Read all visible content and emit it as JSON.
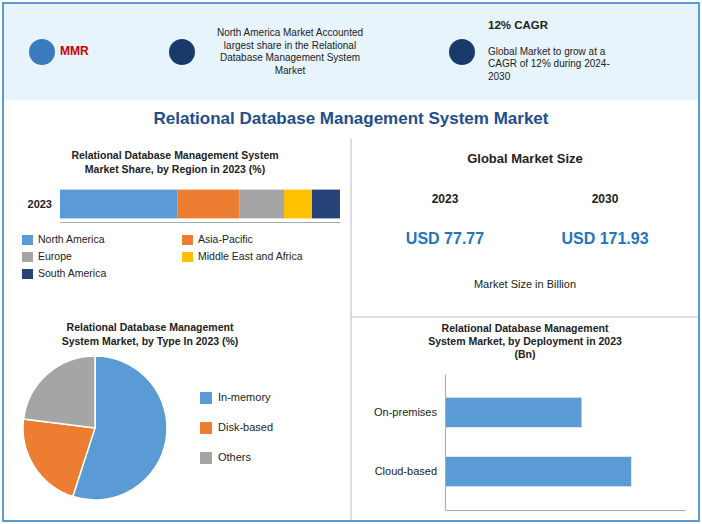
{
  "title": "Relational Database Management System Market",
  "annotations": [
    "MMR",
    "North America Market Accounted\nlargest share in the Relational\nDatabase Management System\nMarket",
    "12% CAGR",
    "Global Market to grow at a\nCAGR of 12% during 2024-\n2030",
    "Global Market Size",
    "2023",
    "2030",
    "USD 77.77",
    "USD 171.93",
    "Market Size in Billion"
  ],
  "chart_data": [
    {
      "type": "bar",
      "orientation": "horizontal",
      "stacked": true,
      "title": "Relational Database Management System\nMarket Share, by Region in 2023 (%)",
      "categories": [
        "2023"
      ],
      "series": [
        {
          "name": "North America",
          "color": "#5b9bd5",
          "values": [
            42
          ]
        },
        {
          "name": "Asia-Pacific",
          "color": "#ed7d31",
          "values": [
            22
          ]
        },
        {
          "name": "Europe",
          "color": "#a5a5a5",
          "values": [
            16
          ]
        },
        {
          "name": "Middle East and Africa",
          "color": "#ffc000",
          "values": [
            10
          ]
        },
        {
          "name": "South America",
          "color": "#264478",
          "values": [
            10
          ]
        }
      ],
      "xlim": [
        0,
        100
      ],
      "xticks": [],
      "tick_labels": "y",
      "legend": "bottom"
    },
    {
      "type": "pie",
      "title": "Relational Database Management\nSystem Market, by Type In 2023 (%)",
      "categories": [
        "In-memory",
        "Disk-based",
        "Others"
      ],
      "values": [
        55,
        22,
        23
      ],
      "colors": [
        "#5b9bd5",
        "#ed7d31",
        "#a5a5a5"
      ],
      "legend": "right"
    },
    {
      "type": "bar",
      "orientation": "horizontal",
      "title": "Relational Database Management\nSystem Market, by Deployment in 2023\n(Bn)",
      "categories": [
        "On-premises",
        "Cloud-based"
      ],
      "values": [
        33,
        45
      ],
      "color": "#5b9bd5",
      "xlim": [
        0,
        58
      ],
      "xticks": [],
      "tick_labels": "y"
    }
  ]
}
